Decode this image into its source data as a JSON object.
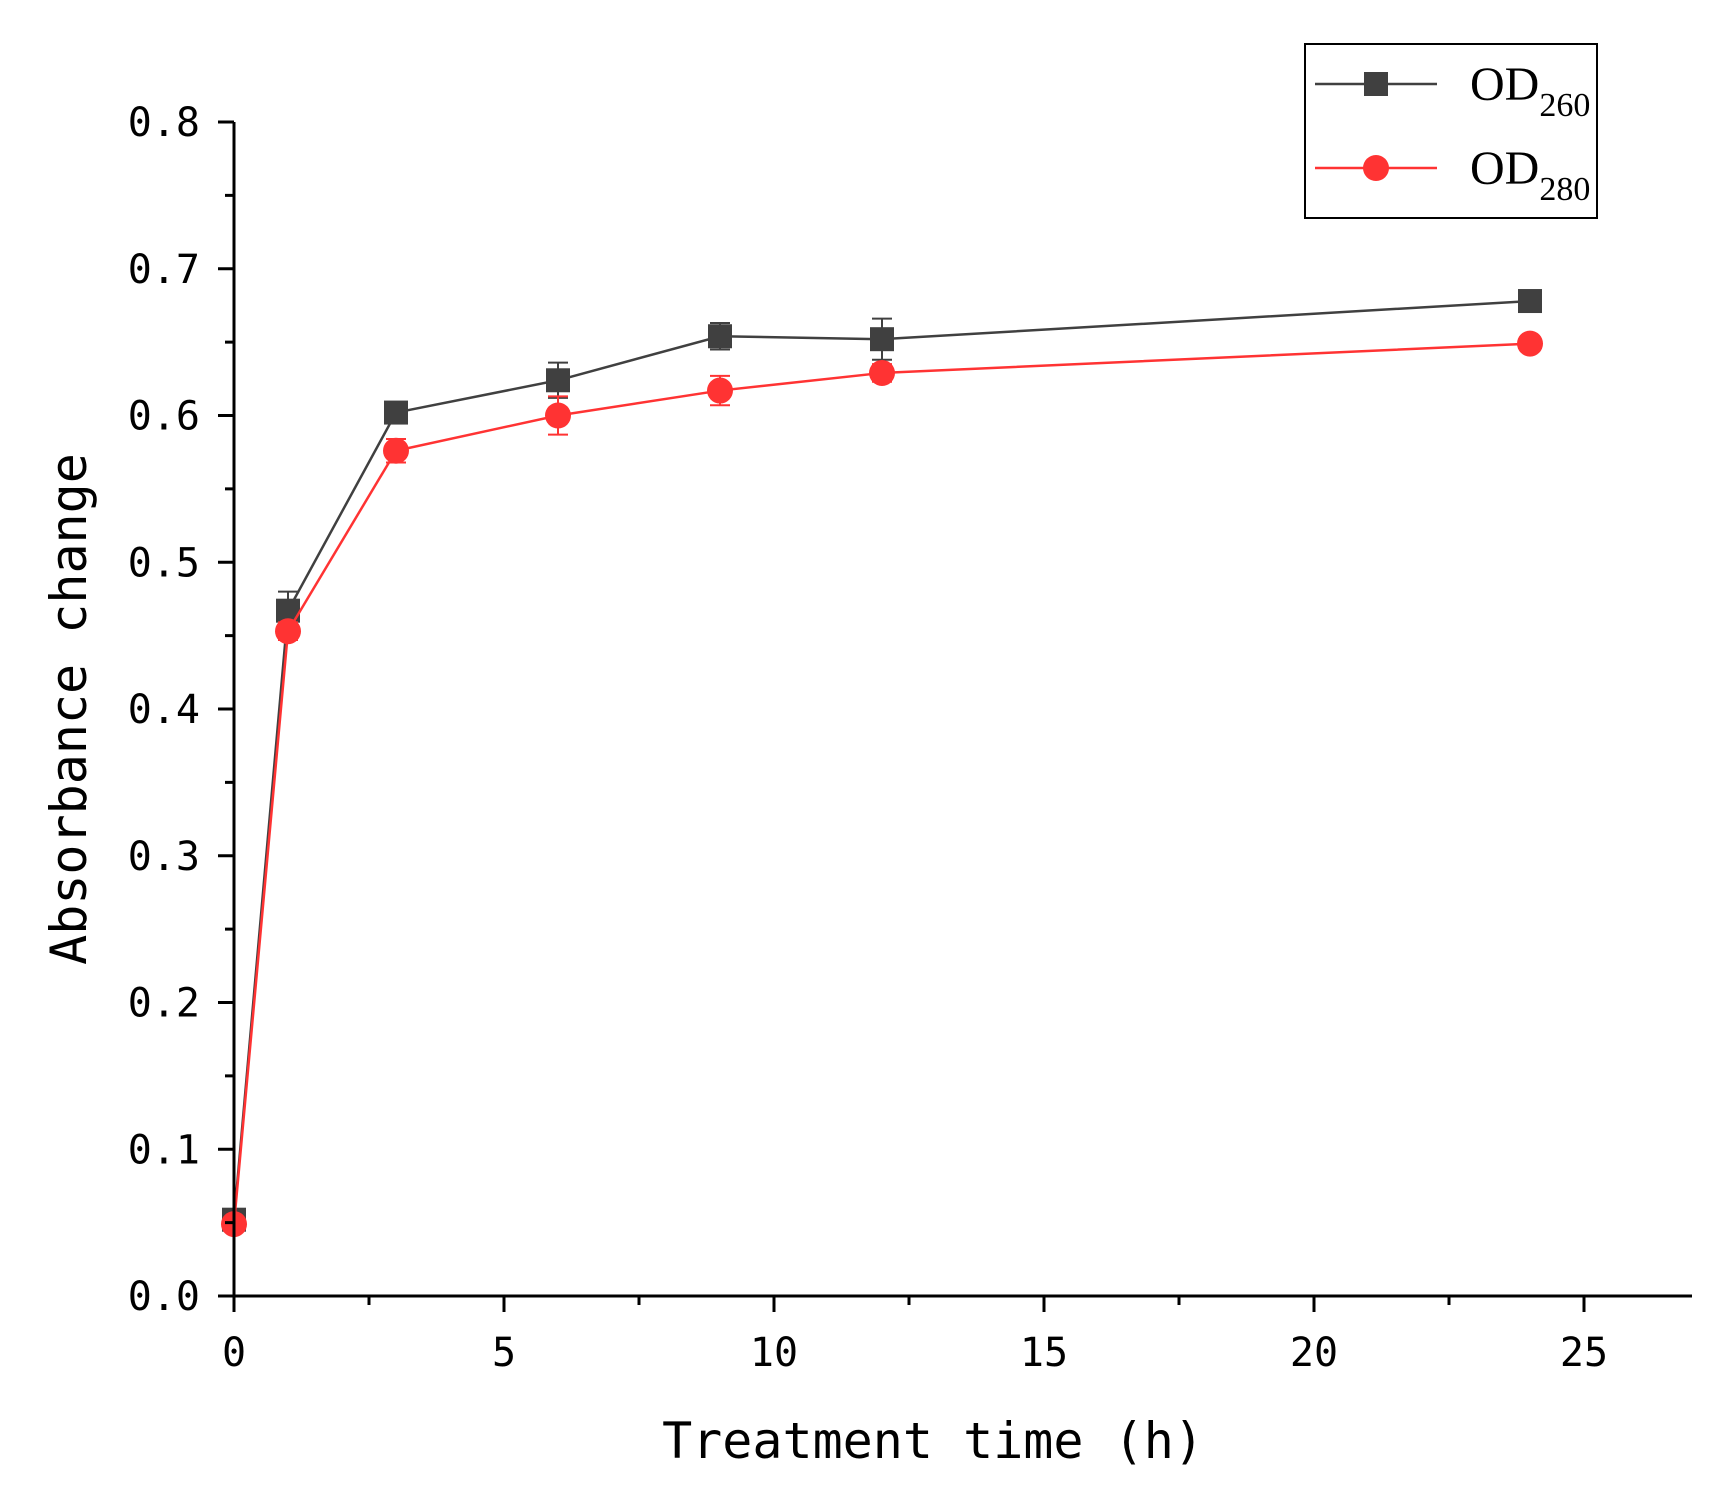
{
  "chart_data": {
    "type": "line",
    "title": "",
    "xlabel": "Treatment time (h)",
    "ylabel": "Absorbance change",
    "xlim": [
      0,
      27
    ],
    "ylim": [
      0,
      0.8
    ],
    "x_ticks": [
      0,
      5,
      10,
      15,
      20,
      25
    ],
    "x_tick_labels": [
      "0",
      "5",
      "10",
      "15",
      "20",
      "25"
    ],
    "y_ticks": [
      0.0,
      0.1,
      0.2,
      0.3,
      0.4,
      0.5,
      0.6,
      0.7,
      0.8
    ],
    "y_tick_labels": [
      "0.0",
      "0.1",
      "0.2",
      "0.3",
      "0.4",
      "0.5",
      "0.6",
      "0.7",
      "0.8"
    ],
    "grid": false,
    "legend_position": "top-right",
    "series": [
      {
        "name": "OD260",
        "legend_main": "OD",
        "legend_sub": "260",
        "color": "#404040",
        "marker": "square",
        "x": [
          0,
          1,
          3,
          6,
          9,
          12,
          24
        ],
        "values": [
          0.052,
          0.467,
          0.602,
          0.624,
          0.654,
          0.652,
          0.678
        ],
        "errors": [
          0.004,
          0.013,
          0.006,
          0.012,
          0.009,
          0.014,
          0.006
        ]
      },
      {
        "name": "OD280",
        "legend_main": "OD",
        "legend_sub": "280",
        "color": "#ff3333",
        "marker": "circle",
        "x": [
          0,
          1,
          3,
          6,
          9,
          12,
          24
        ],
        "values": [
          0.049,
          0.453,
          0.576,
          0.6,
          0.617,
          0.629,
          0.649
        ],
        "errors": [
          0.004,
          0.006,
          0.008,
          0.013,
          0.01,
          0.006,
          0.005
        ]
      }
    ]
  }
}
